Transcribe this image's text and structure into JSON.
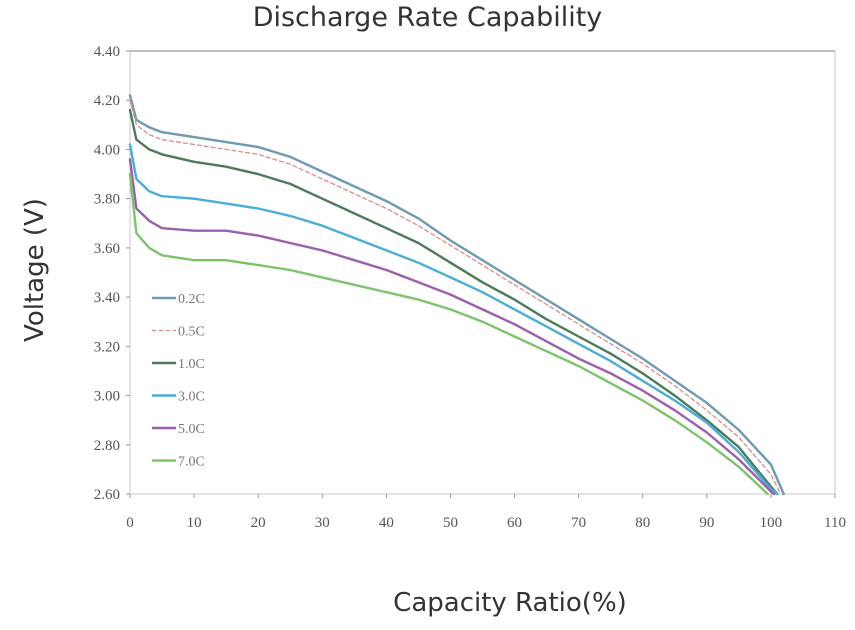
{
  "chart_data": {
    "type": "line",
    "title": "Discharge Rate Capability",
    "xlabel": "Capacity Ratio(%)",
    "ylabel": "Voltage  (V)",
    "xlim": [
      0,
      110
    ],
    "ylim": [
      2.6,
      4.4
    ],
    "xticks": [
      "0",
      "10",
      "20",
      "30",
      "40",
      "50",
      "60",
      "70",
      "80",
      "90",
      "100",
      "110"
    ],
    "yticks": [
      "2.60",
      "2.80",
      "3.00",
      "3.20",
      "3.40",
      "3.60",
      "3.80",
      "4.00",
      "4.20",
      "4.40"
    ],
    "grid": false,
    "legend_position": "left",
    "series": [
      {
        "name": "0.2C",
        "color": "#6f9ab0",
        "dash": false,
        "points": [
          [
            0,
            4.22
          ],
          [
            1,
            4.12
          ],
          [
            3,
            4.09
          ],
          [
            5,
            4.07
          ],
          [
            10,
            4.05
          ],
          [
            15,
            4.03
          ],
          [
            20,
            4.01
          ],
          [
            25,
            3.97
          ],
          [
            30,
            3.91
          ],
          [
            35,
            3.85
          ],
          [
            40,
            3.79
          ],
          [
            45,
            3.72
          ],
          [
            50,
            3.63
          ],
          [
            55,
            3.55
          ],
          [
            60,
            3.47
          ],
          [
            65,
            3.39
          ],
          [
            70,
            3.31
          ],
          [
            75,
            3.23
          ],
          [
            80,
            3.15
          ],
          [
            85,
            3.06
          ],
          [
            90,
            2.97
          ],
          [
            95,
            2.86
          ],
          [
            100,
            2.72
          ],
          [
            102,
            2.6
          ]
        ]
      },
      {
        "name": "0.5C",
        "color": "#d98c8c",
        "dash": true,
        "points": [
          [
            0,
            4.2
          ],
          [
            1,
            4.1
          ],
          [
            3,
            4.06
          ],
          [
            5,
            4.04
          ],
          [
            10,
            4.02
          ],
          [
            15,
            4.0
          ],
          [
            20,
            3.98
          ],
          [
            25,
            3.94
          ],
          [
            30,
            3.88
          ],
          [
            35,
            3.82
          ],
          [
            40,
            3.76
          ],
          [
            45,
            3.69
          ],
          [
            50,
            3.61
          ],
          [
            55,
            3.53
          ],
          [
            60,
            3.45
          ],
          [
            65,
            3.37
          ],
          [
            70,
            3.29
          ],
          [
            75,
            3.21
          ],
          [
            80,
            3.13
          ],
          [
            85,
            3.04
          ],
          [
            90,
            2.94
          ],
          [
            95,
            2.83
          ],
          [
            100,
            2.68
          ],
          [
            101.5,
            2.6
          ]
        ]
      },
      {
        "name": "1.0C",
        "color": "#4e7a5a",
        "dash": false,
        "points": [
          [
            0,
            4.16
          ],
          [
            1,
            4.04
          ],
          [
            3,
            4.0
          ],
          [
            5,
            3.98
          ],
          [
            10,
            3.95
          ],
          [
            15,
            3.93
          ],
          [
            20,
            3.9
          ],
          [
            25,
            3.86
          ],
          [
            30,
            3.8
          ],
          [
            35,
            3.74
          ],
          [
            40,
            3.68
          ],
          [
            45,
            3.62
          ],
          [
            50,
            3.54
          ],
          [
            55,
            3.46
          ],
          [
            60,
            3.39
          ],
          [
            65,
            3.31
          ],
          [
            70,
            3.24
          ],
          [
            75,
            3.17
          ],
          [
            80,
            3.09
          ],
          [
            85,
            3.0
          ],
          [
            90,
            2.9
          ],
          [
            95,
            2.79
          ],
          [
            100,
            2.63
          ],
          [
            101,
            2.6
          ]
        ]
      },
      {
        "name": "3.0C",
        "color": "#4aaed6",
        "dash": false,
        "points": [
          [
            0,
            4.02
          ],
          [
            1,
            3.88
          ],
          [
            3,
            3.83
          ],
          [
            5,
            3.81
          ],
          [
            10,
            3.8
          ],
          [
            15,
            3.78
          ],
          [
            20,
            3.76
          ],
          [
            25,
            3.73
          ],
          [
            30,
            3.69
          ],
          [
            35,
            3.64
          ],
          [
            40,
            3.59
          ],
          [
            45,
            3.54
          ],
          [
            50,
            3.48
          ],
          [
            55,
            3.42
          ],
          [
            60,
            3.35
          ],
          [
            65,
            3.28
          ],
          [
            70,
            3.21
          ],
          [
            75,
            3.14
          ],
          [
            80,
            3.06
          ],
          [
            85,
            2.98
          ],
          [
            90,
            2.89
          ],
          [
            95,
            2.77
          ],
          [
            100,
            2.62
          ],
          [
            101,
            2.6
          ]
        ]
      },
      {
        "name": "5.0C",
        "color": "#9c5fae",
        "dash": false,
        "points": [
          [
            0,
            3.96
          ],
          [
            1,
            3.76
          ],
          [
            3,
            3.71
          ],
          [
            5,
            3.68
          ],
          [
            10,
            3.67
          ],
          [
            15,
            3.67
          ],
          [
            20,
            3.65
          ],
          [
            25,
            3.62
          ],
          [
            30,
            3.59
          ],
          [
            35,
            3.55
          ],
          [
            40,
            3.51
          ],
          [
            45,
            3.46
          ],
          [
            50,
            3.41
          ],
          [
            55,
            3.35
          ],
          [
            60,
            3.29
          ],
          [
            65,
            3.22
          ],
          [
            70,
            3.15
          ],
          [
            75,
            3.09
          ],
          [
            80,
            3.02
          ],
          [
            85,
            2.94
          ],
          [
            90,
            2.85
          ],
          [
            95,
            2.74
          ],
          [
            100,
            2.61
          ],
          [
            100.5,
            2.6
          ]
        ]
      },
      {
        "name": "7.0C",
        "color": "#7bc46a",
        "dash": false,
        "points": [
          [
            0,
            3.9
          ],
          [
            1,
            3.66
          ],
          [
            3,
            3.6
          ],
          [
            5,
            3.57
          ],
          [
            10,
            3.55
          ],
          [
            15,
            3.55
          ],
          [
            20,
            3.53
          ],
          [
            25,
            3.51
          ],
          [
            30,
            3.48
          ],
          [
            35,
            3.45
          ],
          [
            40,
            3.42
          ],
          [
            45,
            3.39
          ],
          [
            50,
            3.35
          ],
          [
            55,
            3.3
          ],
          [
            60,
            3.24
          ],
          [
            65,
            3.18
          ],
          [
            70,
            3.12
          ],
          [
            75,
            3.05
          ],
          [
            80,
            2.98
          ],
          [
            85,
            2.9
          ],
          [
            90,
            2.81
          ],
          [
            95,
            2.71
          ],
          [
            99.5,
            2.6
          ]
        ]
      }
    ]
  }
}
